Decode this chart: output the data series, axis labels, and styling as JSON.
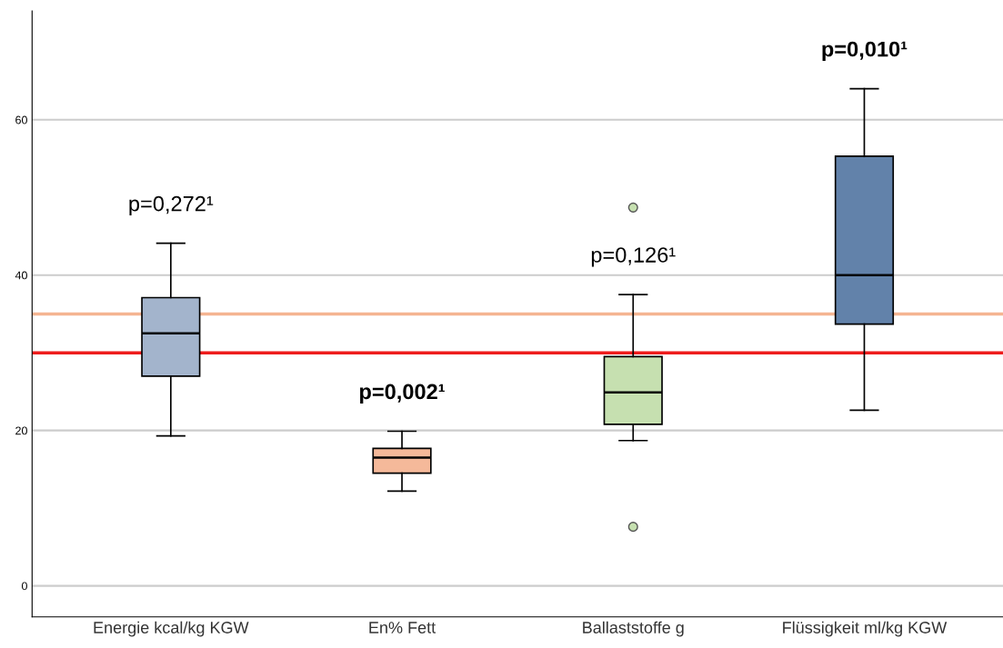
{
  "chart_data": {
    "type": "box",
    "categories": [
      "Energie kcal/kg KGW",
      "En% Fett",
      "Ballaststoffe g",
      "Flüssigkeit ml/kg KGW"
    ],
    "colors": [
      "#a3b4cc",
      "#f5b99a",
      "#c6e0b0",
      "#6282aa"
    ],
    "boxes": [
      {
        "low": 19.3,
        "q1": 27.0,
        "median": 32.5,
        "q3": 37.1,
        "high": 44.1
      },
      {
        "low": 12.2,
        "q1": 14.5,
        "median": 16.5,
        "q3": 17.7,
        "high": 19.9
      },
      {
        "low": 18.7,
        "q1": 20.8,
        "median": 24.9,
        "q3": 29.5,
        "high": 37.5,
        "outliers": [
          48.7,
          7.6
        ]
      },
      {
        "low": 22.6,
        "q1": 33.7,
        "median": 40.0,
        "q3": 55.3,
        "high": 64.0
      }
    ],
    "ylim": [
      -4,
      74
    ],
    "yticks": [
      0,
      20,
      40,
      60
    ],
    "grid": "y",
    "ref_lines": [
      {
        "axis": "y",
        "value": 35,
        "color": "#f5b592"
      },
      {
        "axis": "y",
        "value": 30,
        "color": "#ee1c1c"
      }
    ],
    "annotations": [
      {
        "text": "p=0,272¹",
        "x": "Energie kcal/kg KGW",
        "y": 44.1
      },
      {
        "text": "p=0,002¹",
        "x": "En% Fett",
        "y": 19.9
      },
      {
        "text": "p=0,126¹",
        "x": "Ballaststoffe g",
        "y": 37.5
      },
      {
        "text": "p=0,010¹",
        "x": "Flüssigkeit ml/kg KGW",
        "y": 64.0
      }
    ]
  }
}
